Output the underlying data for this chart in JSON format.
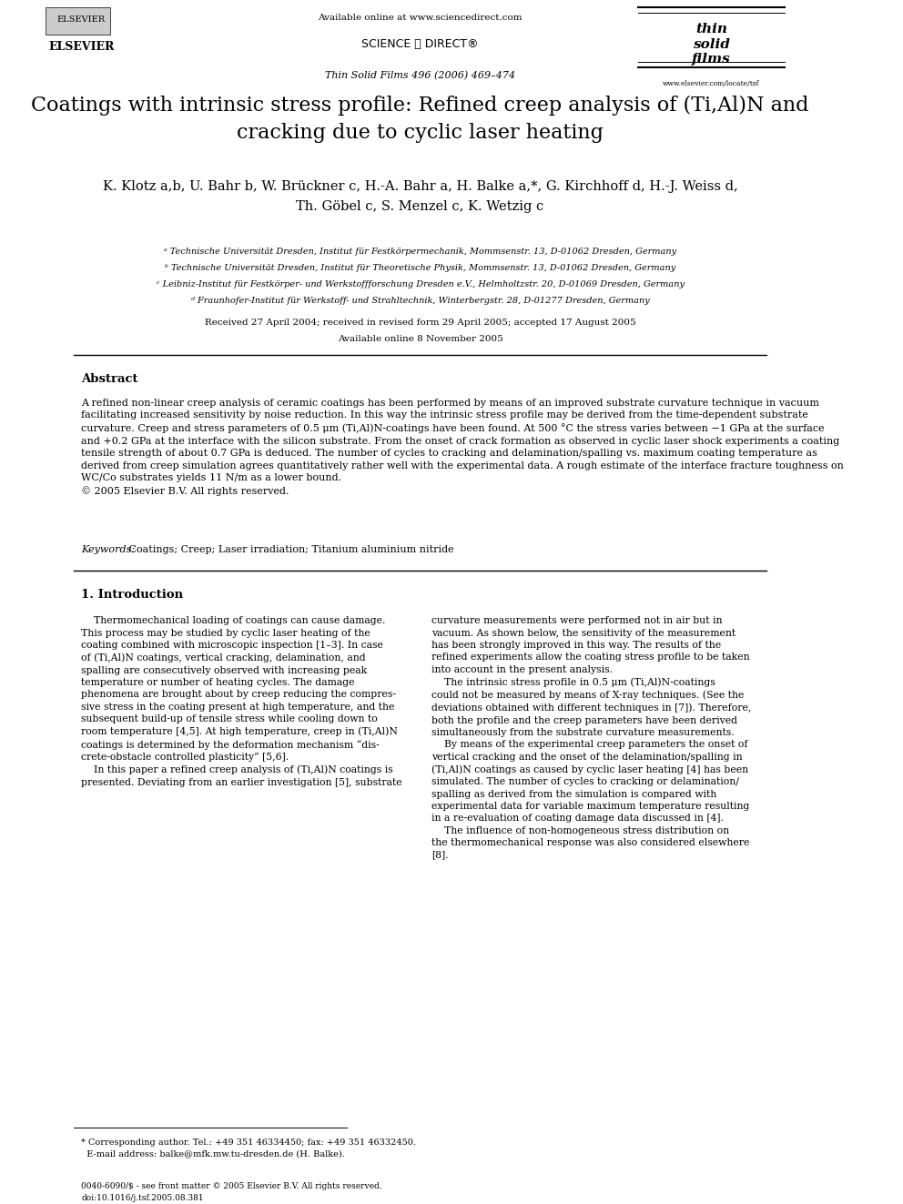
{
  "page_width": 9.92,
  "page_height": 13.23,
  "bg_color": "#ffffff",
  "header": {
    "available_online": "Available online at www.sciencedirect.com",
    "journal_line": "Thin Solid Films 496 (2006) 469–474",
    "journal_url": "www.elsevier.com/locate/tsf",
    "elsevier_text": "ELSEVIER"
  },
  "title": "Coatings with intrinsic stress profile: Refined creep analysis of (Ti,Al)N and\ncracking due to cyclic laser heating",
  "authors": "K. Klotz ᵃᵇ, U. Bahr ᵇ, W. Brückner ᶜ, H.-A. Bahr ᵃ, H. Balke ᵃ*, G. Kirchhoff ᵈ, H.-J. Weiss ᵈ,\nTh. Göbel ᶜ, S. Menzel ᶜ, K. Wetzig ᶜ",
  "affiliations": [
    "ᵃ Technische Universität Dresden, Institut für Festkörpermechanik, Mommsenstr. 13, D-01062 Dresden, Germany",
    "ᵇ Technische Universität Dresden, Institut für Theoretische Physik, Mommsenstr. 13, D-01062 Dresden, Germany",
    "ᶜ Leibniz-Institut für Festkörper- und Werkstoffforschung Dresden e.V., Helmholtzstr. 20, D-01069 Dresden, Germany",
    "ᵈ Fraunhofer-Institut für Werkstoff- und Strahltechnik, Winterbergstr. 28, D-01277 Dresden, Germany"
  ],
  "received_line": "Received 27 April 2004; received in revised form 29 April 2005; accepted 17 August 2005",
  "available_online_date": "Available online 8 November 2005",
  "abstract_title": "Abstract",
  "abstract_text": "A refined non-linear creep analysis of ceramic coatings has been performed by means of an improved substrate curvature technique in vacuum facilitating increased sensitivity by noise reduction. In this way the intrinsic stress profile may be derived from the time-dependent substrate curvature. Creep and stress parameters of 0.5 μm (Ti,Al)N-coatings have been found. At 500 °C the stress varies between −1 GPa at the surface and +0.2 GPa at the interface with the silicon substrate. From the onset of crack formation as observed in cyclic laser shock experiments a coating tensile strength of about 0.7 GPa is deduced. The number of cycles to cracking and delamination/spalling vs. maximum coating temperature as derived from creep simulation agrees quantitatively rather well with the experimental data. A rough estimate of the interface fracture toughness on WC/Co substrates yields 11 N/m as a lower bound.\n© 2005 Elsevier B.V. All rights reserved.",
  "keywords_label": "Keywords:",
  "keywords_text": " Coatings; Creep; Laser irradiation; Titanium aluminium nitride",
  "section1_title": "1. Introduction",
  "col1_intro": "Thermomechanical loading of coatings can cause damage. This process may be studied by cyclic laser heating of the coating combined with microscopic inspection [1–3]. In case of (Ti,Al)N coatings, vertical cracking, delamination, and spalling are consecutively observed with increasing peak temperature or number of heating cycles. The damage phenomena are brought about by creep reducing the compressive stress in the coating present at high temperature, and the subsequent build-up of tensile stress while cooling down to room temperature [4,5]. At high temperature, creep in (Ti,Al)N coatings is determined by the deformation mechanism “discrete-obstacle controlled plasticity” [5,6].\n   In this paper a refined creep analysis of (Ti,Al)N coatings is presented. Deviating from an earlier investigation [5], substrate",
  "col2_intro": "curvature measurements were performed not in air but in vacuum. As shown below, the sensitivity of the measurement has been strongly improved in this way. The results of the refined experiments allow the coating stress profile to be taken into account in the present analysis.\n   The intrinsic stress profile in 0.5 μm (Ti,Al)N-coatings could not be measured by means of X-ray techniques. (See the deviations obtained with different techniques in [7]). Therefore, both the profile and the creep parameters have been derived simultaneously from the substrate curvature measurements.\n   By means of the experimental creep parameters the onset of vertical cracking and the onset of the delamination/spalling in (Ti,Al)N coatings as caused by cyclic laser heating [4] has been simulated. The number of cycles to cracking or delamination/spalling as derived from the simulation is compared with experimental data for variable maximum temperature resulting in a re-evaluation of coating damage data discussed in [4].\n   The influence of non-homogeneous stress distribution on the thermomechanical response was also considered elsewhere [8].",
  "footnote_star": "* Corresponding author. Tel.: +49 351 46334450; fax: +49 351 46332450.\n  E-mail address: balke@mfk.mw.tu-dresden.de (H. Balke).",
  "bottom_line1": "0040-6090/$ - see front matter © 2005 Elsevier B.V. All rights reserved.",
  "bottom_line2": "doi:10.1016/j.tsf.2005.08.381"
}
